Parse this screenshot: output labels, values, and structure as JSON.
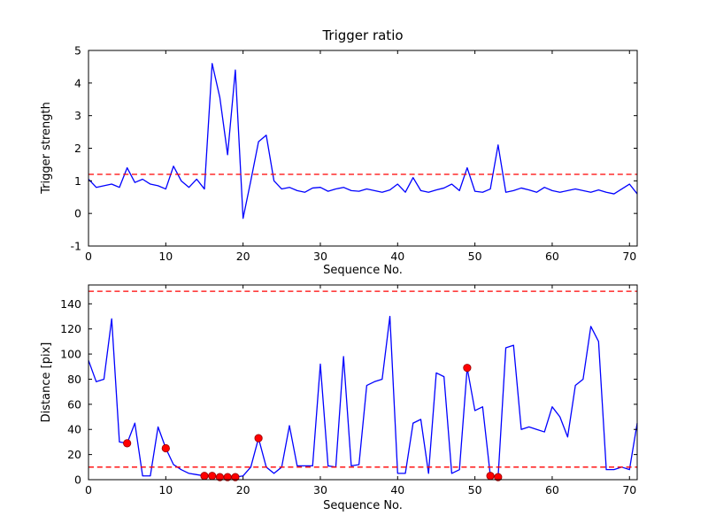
{
  "chart_data": [
    {
      "type": "line",
      "title": "Trigger ratio",
      "xlabel": "Sequence No.",
      "ylabel": "Trigger strength",
      "xlim": [
        0,
        71
      ],
      "ylim": [
        -1,
        5
      ],
      "xticks": [
        0,
        10,
        20,
        30,
        40,
        50,
        60,
        70
      ],
      "yticks": [
        -1,
        0,
        1,
        2,
        3,
        4,
        5
      ],
      "grid": false,
      "legend": null,
      "line_color": "#0000ff",
      "threshold_color": "#ff0000",
      "thresholds": [
        1.2
      ],
      "x": [
        0,
        1,
        2,
        3,
        4,
        5,
        6,
        7,
        8,
        9,
        10,
        11,
        12,
        13,
        14,
        15,
        16,
        17,
        18,
        19,
        20,
        21,
        22,
        23,
        24,
        25,
        26,
        27,
        28,
        29,
        30,
        31,
        32,
        33,
        34,
        35,
        36,
        37,
        38,
        39,
        40,
        41,
        42,
        43,
        44,
        45,
        46,
        47,
        48,
        49,
        50,
        51,
        52,
        53,
        54,
        55,
        56,
        57,
        58,
        59,
        60,
        61,
        62,
        63,
        64,
        65,
        66,
        67,
        68,
        69,
        70,
        71
      ],
      "y": [
        1.05,
        0.8,
        0.85,
        0.9,
        0.8,
        1.4,
        0.95,
        1.05,
        0.9,
        0.85,
        0.75,
        1.45,
        1.0,
        0.8,
        1.05,
        0.75,
        4.6,
        3.55,
        1.8,
        4.4,
        -0.15,
        1.0,
        2.2,
        2.4,
        1.0,
        0.75,
        0.8,
        0.7,
        0.65,
        0.78,
        0.8,
        0.68,
        0.75,
        0.8,
        0.7,
        0.68,
        0.75,
        0.7,
        0.65,
        0.72,
        0.9,
        0.65,
        1.1,
        0.7,
        0.65,
        0.72,
        0.78,
        0.9,
        0.7,
        1.4,
        0.68,
        0.65,
        0.75,
        2.1,
        0.65,
        0.7,
        0.78,
        0.72,
        0.65,
        0.8,
        0.7,
        0.65,
        0.7,
        0.75,
        0.7,
        0.65,
        0.72,
        0.65,
        0.6,
        0.75,
        0.9,
        0.6
      ]
    },
    {
      "type": "line",
      "title": "",
      "xlabel": "Sequence No.",
      "ylabel": "Distance [pix]",
      "xlim": [
        0,
        71
      ],
      "ylim": [
        0,
        155
      ],
      "xticks": [
        0,
        10,
        20,
        30,
        40,
        50,
        60,
        70
      ],
      "yticks": [
        0,
        20,
        40,
        60,
        80,
        100,
        120,
        140
      ],
      "grid": false,
      "legend": null,
      "line_color": "#0000ff",
      "threshold_color": "#ff0000",
      "thresholds": [
        150,
        10
      ],
      "marker_color": "#ff0000",
      "marker_edge_color": "#990000",
      "markers": [
        [
          5,
          29
        ],
        [
          10,
          25
        ],
        [
          15,
          3
        ],
        [
          16,
          3
        ],
        [
          17,
          2
        ],
        [
          18,
          2
        ],
        [
          19,
          2
        ],
        [
          22,
          33
        ],
        [
          49,
          89
        ],
        [
          52,
          3
        ],
        [
          53,
          2
        ]
      ],
      "x": [
        0,
        1,
        2,
        3,
        4,
        5,
        6,
        7,
        8,
        9,
        10,
        11,
        12,
        13,
        14,
        15,
        16,
        17,
        18,
        19,
        20,
        21,
        22,
        23,
        24,
        25,
        26,
        27,
        28,
        29,
        30,
        31,
        32,
        33,
        34,
        35,
        36,
        37,
        38,
        39,
        40,
        41,
        42,
        43,
        44,
        45,
        46,
        47,
        48,
        49,
        50,
        51,
        52,
        53,
        54,
        55,
        56,
        57,
        58,
        59,
        60,
        61,
        62,
        63,
        64,
        65,
        66,
        67,
        68,
        69,
        70,
        71
      ],
      "y": [
        95,
        78,
        80,
        128,
        30,
        29,
        45,
        3,
        3,
        42,
        25,
        12,
        8,
        5,
        4,
        3,
        3,
        2,
        2,
        2,
        3,
        10,
        33,
        10,
        5,
        10,
        43,
        11,
        11,
        11,
        92,
        11,
        10,
        98,
        11,
        12,
        75,
        78,
        80,
        130,
        5,
        5,
        45,
        48,
        5,
        85,
        82,
        5,
        8,
        89,
        55,
        58,
        3,
        2,
        105,
        107,
        40,
        42,
        40,
        38,
        58,
        50,
        34,
        75,
        80,
        122,
        110,
        8,
        8,
        10,
        8,
        45
      ]
    }
  ]
}
